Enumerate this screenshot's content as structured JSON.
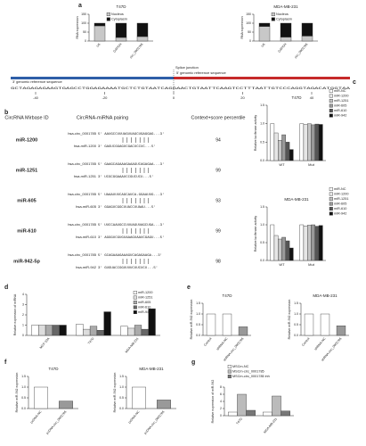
{
  "panel_labels": [
    "a",
    "b",
    "c",
    "d",
    "e",
    "f",
    "g"
  ],
  "sequence": {
    "splice_label": "Splice junction",
    "left_label": "3' genomic reference sequence",
    "right_label": "5' genomic reference sequence",
    "text": "GCTAGAGAGAAGTGAGCCTGGAGAAAATGCTCTGTAATCAGGAACTGTAATTCAAGTCCTTTAATTGTCCCAGGTAGACATGGTAA",
    "positions": [
      -40,
      -20,
      0,
      20,
      40
    ]
  },
  "pairing": {
    "headers": [
      "CircRNA Mirbase ID",
      "CircRNA-miRNA pairing",
      "Context+score percentile"
    ],
    "rows": [
      {
        "mirna": "miR-1200",
        "circ_label": "hsa-circ_0001785",
        "circ_seq": "5' AAUGCCUUUAGUUAGCUGAGGAG...3'",
        "mir_label": "hsa-miR-1200",
        "mir_seq": "3' GAGUCGGAGUCGACUCCUC...5'",
        "score": 94
      },
      {
        "mirna": "miR-1251",
        "circ_label": "hsa-circ_0001785",
        "circ_seq": "5' GAAGCAGAAAGAAAGUCAGAGAA...3'",
        "mir_label": "hsa-miR-1251",
        "mir_seq": "3' UCGCGGAAAUCCGUCUCU...5'",
        "score": 99
      },
      {
        "mirna": "miR-605",
        "circ_label": "hsa-circ_0001785",
        "circ_seq": "5' UAAAUUUCAGCAUCA-GGAAUUG...3'",
        "mir_label": "hsa-miR-605",
        "mir_seq": "3' GGAGUCGGCUUACCUUAAU...5'",
        "score": 93
      },
      {
        "mirna": "miR-610",
        "circ_label": "hsa-circ_0001785",
        "circ_seq": "5' UUCCAAUGCCUUUAGUUAGCUGA...3'",
        "mir_label": "hsa-miR-610",
        "mir_seq": "3' AGGGUCGUGUAAAGUAAUCGAGU...5'",
        "score": 99
      },
      {
        "mirna": "miR-942-5p",
        "circ_label": "hsa-circ_0001785",
        "circ_seq": "5' GCAGAAAGAAAGUCAGAGAAGA...3'",
        "mir_label": "hsa-miR-942",
        "mir_seq": "3' GUGUACCGGUUUUCUUCUCU...5'",
        "score": 98
      }
    ]
  },
  "chart_data": [
    {
      "type": "stacked-bar",
      "title": "T47D",
      "ylabel": "RNA expression",
      "categories": [
        "U6",
        "GAPDH",
        "circ_0001785"
      ],
      "series": [
        {
          "name": "Nucleus",
          "color": "#c8c8c8",
          "values": [
            85,
            20,
            25
          ]
        },
        {
          "name": "Cytoplasm",
          "color": "#111111",
          "values": [
            15,
            80,
            75
          ]
        }
      ],
      "ylim": [
        0,
        150
      ],
      "yticks": [
        0,
        50,
        100,
        150
      ],
      "legend": true
    },
    {
      "type": "stacked-bar",
      "title": "MDA-MB-231",
      "ylabel": "RNA expression",
      "categories": [
        "U6",
        "GAPDH",
        "circ_0001785"
      ],
      "series": [
        {
          "name": "Nucleus",
          "color": "#c8c8c8",
          "values": [
            82,
            22,
            28
          ]
        },
        {
          "name": "Cytoplasm",
          "color": "#111111",
          "values": [
            18,
            78,
            72
          ]
        }
      ],
      "ylim": [
        0,
        150
      ],
      "yticks": [
        0,
        50,
        100,
        150
      ],
      "legend": true
    },
    {
      "type": "bar",
      "title": "T47D",
      "ylabel": "Relative luciferase activity",
      "categories": [
        "WT",
        "Mut"
      ],
      "series": [
        {
          "name": "miR-NC",
          "color": "#ffffff",
          "values": [
            1.0,
            1.0
          ]
        },
        {
          "name": "miR-1200",
          "color": "#e6e6e6",
          "values": [
            0.75,
            0.98
          ]
        },
        {
          "name": "miR-1251",
          "color": "#c4c4c4",
          "values": [
            0.55,
            1.0
          ]
        },
        {
          "name": "miR-605",
          "color": "#999999",
          "values": [
            0.7,
            0.97
          ]
        },
        {
          "name": "miR-610",
          "color": "#555555",
          "values": [
            0.5,
            0.99
          ]
        },
        {
          "name": "miR-942",
          "color": "#111111",
          "values": [
            0.3,
            0.98
          ]
        }
      ],
      "ylim": [
        0,
        1.5
      ],
      "yticks": [
        {
          "value": 0,
          "label": "0.0"
        },
        {
          "value": 0.5,
          "label": "0.5"
        },
        {
          "value": 1,
          "label": "1.0"
        },
        {
          "value": 1.5,
          "label": "1.5"
        }
      ],
      "legend": true
    },
    {
      "type": "bar",
      "title": "MDA-MB-231",
      "ylabel": "Relative luciferase activity",
      "categories": [
        "WT",
        "Mut"
      ],
      "series": [
        {
          "name": "miR-NC",
          "color": "#ffffff",
          "values": [
            1.0,
            1.0
          ]
        },
        {
          "name": "miR-1200",
          "color": "#e6e6e6",
          "values": [
            0.7,
            0.97
          ]
        },
        {
          "name": "miR-1251",
          "color": "#c4c4c4",
          "values": [
            0.6,
            0.99
          ]
        },
        {
          "name": "miR-605",
          "color": "#999999",
          "values": [
            0.65,
            1.0
          ]
        },
        {
          "name": "miR-610",
          "color": "#555555",
          "values": [
            0.55,
            0.96
          ]
        },
        {
          "name": "miR-942",
          "color": "#111111",
          "values": [
            0.35,
            0.98
          ]
        }
      ],
      "ylim": [
        0,
        1.5
      ],
      "yticks": [
        {
          "value": 0,
          "label": "0.0"
        },
        {
          "value": 0.5,
          "label": "0.5"
        },
        {
          "value": 1,
          "label": "1.0"
        },
        {
          "value": 1.5,
          "label": "1.5"
        }
      ],
      "legend": true
    },
    {
      "type": "bar",
      "ylabel": "Relative expression of miRNA",
      "categories": [
        "MCF-10A",
        "T47D",
        "MDA-MB-231"
      ],
      "series": [
        {
          "name": "miR-1200",
          "color": "#ffffff",
          "values": [
            1.0,
            1.1,
            0.9
          ]
        },
        {
          "name": "miR-1251",
          "color": "#dddddd",
          "values": [
            1.0,
            0.6,
            0.7
          ]
        },
        {
          "name": "miR-605",
          "color": "#aaaaaa",
          "values": [
            1.0,
            0.9,
            1.0
          ]
        },
        {
          "name": "miR-610",
          "color": "#666666",
          "values": [
            1.0,
            0.5,
            0.6
          ]
        },
        {
          "name": "miR-942",
          "color": "#111111",
          "values": [
            1.0,
            2.3,
            2.6
          ]
        }
      ],
      "ylim": [
        0,
        4
      ],
      "yticks": [
        0,
        1,
        2,
        3,
        4
      ],
      "legend": true
    },
    {
      "type": "bar",
      "title": "T47D",
      "ylabel": "Relative miR-942 expression",
      "categories": [
        "Control",
        "shRNA-NC",
        "shRNA-circ_0001785"
      ],
      "values": [
        1.0,
        1.0,
        0.4
      ],
      "colors": [
        "#ffffff",
        "#ffffff",
        "#999999"
      ],
      "ylim": [
        0,
        1.5
      ],
      "yticks": [
        {
          "value": 0,
          "label": "0.0"
        },
        {
          "value": 0.5,
          "label": "0.5"
        },
        {
          "value": 1,
          "label": "1.0"
        },
        {
          "value": 1.5,
          "label": "1.5"
        }
      ]
    },
    {
      "type": "bar",
      "title": "MDA-MB-231",
      "ylabel": "Relative miR-942 expression",
      "categories": [
        "Control",
        "shRNA-NC",
        "shRNA-circ_0001785"
      ],
      "values": [
        1.0,
        1.0,
        0.45
      ],
      "colors": [
        "#ffffff",
        "#ffffff",
        "#999999"
      ],
      "ylim": [
        0,
        1.5
      ],
      "yticks": [
        {
          "value": 0,
          "label": "0.0"
        },
        {
          "value": 0.5,
          "label": "0.5"
        },
        {
          "value": 1,
          "label": "1.0"
        },
        {
          "value": 1.5,
          "label": "1.5"
        }
      ]
    },
    {
      "type": "bar",
      "title": "T47D",
      "ylabel": "Relative miR-942 expression",
      "categories": [
        "pcDNA-NC",
        "pcDNA-circ_0001785"
      ],
      "values": [
        1.0,
        0.35
      ],
      "colors": [
        "#ffffff",
        "#999999"
      ],
      "ylim": [
        0,
        1.5
      ],
      "yticks": [
        {
          "value": 0,
          "label": "0.0"
        },
        {
          "value": 0.5,
          "label": "0.5"
        },
        {
          "value": 1,
          "label": "1.0"
        },
        {
          "value": 1.5,
          "label": "1.5"
        }
      ]
    },
    {
      "type": "bar",
      "title": "MDA-MB-231",
      "ylabel": "Relative miR-942 expression",
      "categories": [
        "pcDNA-NC",
        "pcDNA-circ_0001785"
      ],
      "values": [
        1.0,
        0.4
      ],
      "colors": [
        "#ffffff",
        "#999999"
      ],
      "ylim": [
        0,
        1.5
      ],
      "yticks": [
        {
          "value": 0,
          "label": "0.0"
        },
        {
          "value": 0.5,
          "label": "0.5"
        },
        {
          "value": 1,
          "label": "1.0"
        },
        {
          "value": 1.5,
          "label": "1.5"
        }
      ]
    },
    {
      "type": "bar",
      "ylabel": "Relative expression of miR-942",
      "categories": [
        "T47D",
        "MDA-MB-231"
      ],
      "series": [
        {
          "name": "MSCm-NC",
          "color": "#ffffff",
          "values": [
            1.0,
            1.0
          ]
        },
        {
          "name": "MSCm-circ_0001785",
          "color": "#bbbbbb",
          "values": [
            6.0,
            5.5
          ]
        },
        {
          "name": "MSCm-circ_0001785 inh",
          "color": "#777777",
          "values": [
            1.5,
            1.3
          ]
        }
      ],
      "ylim": [
        0,
        8
      ],
      "yticks": [
        0,
        2,
        4,
        6,
        8
      ],
      "legend": true
    }
  ]
}
